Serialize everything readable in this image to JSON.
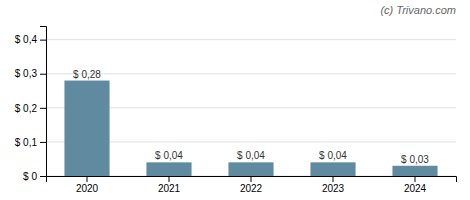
{
  "chart_data": {
    "type": "bar",
    "categories": [
      "2020",
      "2021",
      "2022",
      "2023",
      "2024"
    ],
    "values": [
      0.28,
      0.04,
      0.04,
      0.04,
      0.03
    ],
    "value_labels": [
      "$ 0,28",
      "$ 0,04",
      "$ 0,04",
      "$ 0,04",
      "$ 0,03"
    ],
    "data_labels": true,
    "color": "#5f8a9f",
    "ylim": [
      0,
      0.44
    ],
    "yticks": [
      {
        "value": 0.0,
        "label": "$ 0"
      },
      {
        "value": 0.1,
        "label": "$ 0,1"
      },
      {
        "value": 0.2,
        "label": "$ 0,2"
      },
      {
        "value": 0.3,
        "label": "$ 0,3"
      },
      {
        "value": 0.4,
        "label": "$ 0,4"
      }
    ],
    "grid": true,
    "annotations": [
      "(c) Trivano.com"
    ]
  }
}
